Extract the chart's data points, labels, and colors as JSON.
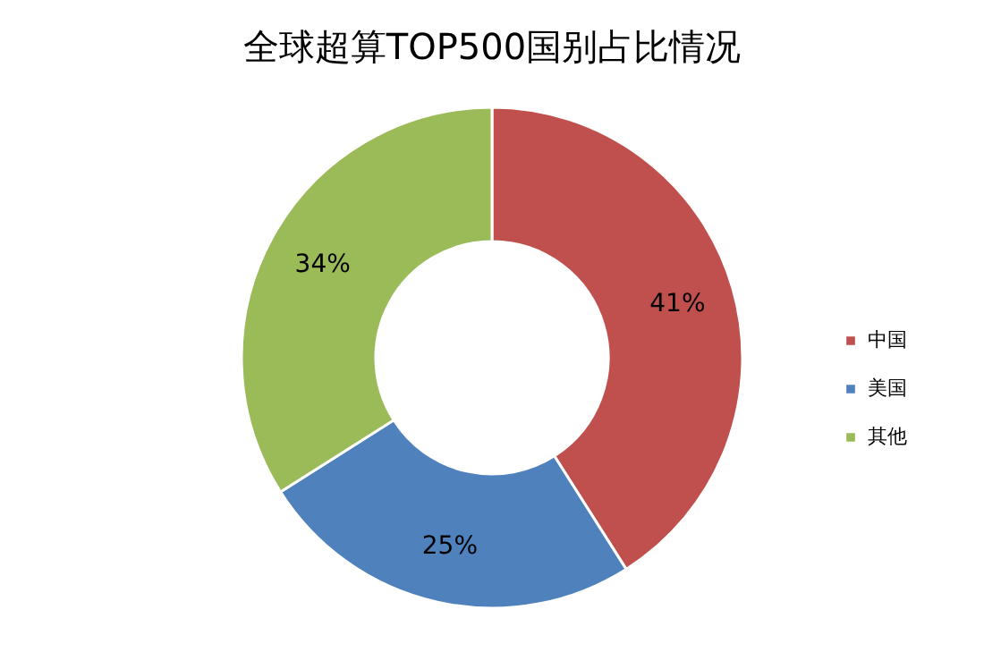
{
  "chart_data": {
    "type": "donut",
    "title": "全球超算TOP500国别占比情况",
    "categories": [
      "中国",
      "美国",
      "其他"
    ],
    "values": [
      41,
      25,
      34
    ],
    "colors": [
      "#c0504d",
      "#4f81bd",
      "#9bbb59"
    ],
    "value_labels": [
      "41%",
      "25%",
      "34%"
    ],
    "legend": "right"
  }
}
